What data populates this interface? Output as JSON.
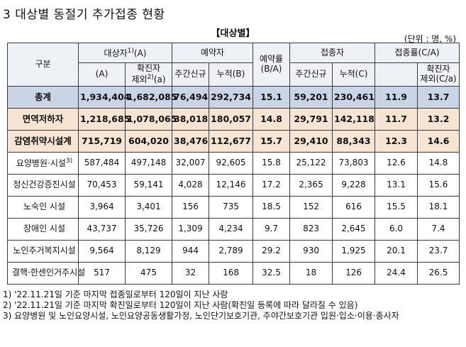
{
  "title": "3 대상별 동절기 추가접종 현황",
  "section_label": "【대상별】",
  "unit": "(단위 : 명, %)",
  "headers": {
    "category": "구분",
    "target": "대상자",
    "target_sup": "1)",
    "target_a": "(A)",
    "excl_a_1": "확진자",
    "excl_a_2": "제외",
    "excl_a_sup": "2)",
    "excl_a_3": "(a)",
    "reservation": "예약자",
    "new_week": "주간신규",
    "cumulative_b": "누적(B)",
    "reservation_rate": "예약률",
    "reservation_rate_2": "(B/A)",
    "vaccinated": "접종자",
    "new_week_2": "주간신규",
    "cumulative_c": "누적(C)",
    "vacc_rate": "접종률(C/A)",
    "excl_ca_1": "확진자",
    "excl_ca_2": "제외(C/a)"
  },
  "rows": [
    {
      "kind": "total",
      "label": "총계",
      "label_sup": "",
      "a": "1,934,404",
      "excl": "1,682,085",
      "res_new": "76,494",
      "res_cum": "292,734",
      "res_rate": "15.1",
      "vac_new": "59,201",
      "vac_cum": "230,461",
      "rate": "11.9",
      "rate_excl": "13.7"
    },
    {
      "kind": "group",
      "label": "면역저하자",
      "label_sup": "",
      "a": "1,218,685",
      "excl": "1,078,065",
      "res_new": "38,018",
      "res_cum": "180,057",
      "res_rate": "14.8",
      "vac_new": "29,791",
      "vac_cum": "142,118",
      "rate": "11.7",
      "rate_excl": "13.2"
    },
    {
      "kind": "group",
      "label": "감염취약시설계",
      "label_sup": "",
      "a": "715,719",
      "excl": "604,020",
      "res_new": "38,476",
      "res_cum": "112,677",
      "res_rate": "15.7",
      "vac_new": "29,410",
      "vac_cum": "88,343",
      "rate": "12.3",
      "rate_excl": "14.6"
    },
    {
      "kind": "sub",
      "label": "요양병원·시설",
      "label_sup": "3)",
      "a": "587,484",
      "excl": "497,148",
      "res_new": "32,007",
      "res_cum": "92,605",
      "res_rate": "15.8",
      "vac_new": "25,122",
      "vac_cum": "73,803",
      "rate": "12.6",
      "rate_excl": "14.8"
    },
    {
      "kind": "sub",
      "label": "정신건강증진시설",
      "label_sup": "",
      "a": "70,453",
      "excl": "59,141",
      "res_new": "4,028",
      "res_cum": "12,146",
      "res_rate": "17.2",
      "vac_new": "2,365",
      "vac_cum": "9,228",
      "rate": "13.1",
      "rate_excl": "15.6"
    },
    {
      "kind": "sub",
      "label": "노숙인 시설",
      "label_sup": "",
      "a": "3,964",
      "excl": "3,401",
      "res_new": "156",
      "res_cum": "735",
      "res_rate": "18.5",
      "vac_new": "152",
      "vac_cum": "616",
      "rate": "15.5",
      "rate_excl": "18.1"
    },
    {
      "kind": "sub",
      "label": "장애인 시설",
      "label_sup": "",
      "a": "43,737",
      "excl": "35,726",
      "res_new": "1,309",
      "res_cum": "4,234",
      "res_rate": "9.7",
      "vac_new": "823",
      "vac_cum": "2,645",
      "rate": "6.0",
      "rate_excl": "7.4"
    },
    {
      "kind": "sub",
      "label": "노인주거복지시설",
      "label_sup": "",
      "a": "9,564",
      "excl": "8,129",
      "res_new": "944",
      "res_cum": "2,789",
      "res_rate": "29.2",
      "vac_new": "930",
      "vac_cum": "1,925",
      "rate": "20.1",
      "rate_excl": "23.7"
    },
    {
      "kind": "sub",
      "label": "결핵·한센인거주시설",
      "label_sup": "",
      "a": "517",
      "excl": "475",
      "res_new": "32",
      "res_cum": "168",
      "res_rate": "32.5",
      "vac_new": "18",
      "vac_cum": "126",
      "rate": "24.4",
      "rate_excl": "26.5"
    }
  ],
  "notes": [
    "1) '22.11.21일 기준 마지막 접종일로부터 120일이 지난 사람",
    "2) '22.11.21일 기준 마지막 확진일로부터 120일이 지난 사람(확진일 등록에 따라 달라질 수 있음)",
    "3) 요양병원 및 노인요양시설, 노인요양공동생활가정, 노인단기보호기관, 주야간보호기관 입원·입소·이용·종사자"
  ]
}
